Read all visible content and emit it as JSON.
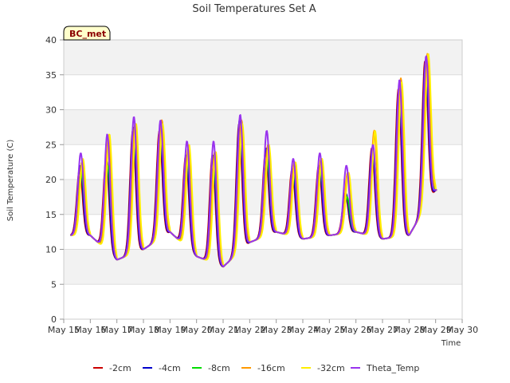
{
  "chart_data": {
    "type": "line",
    "title": "Soil Temperatures Set A",
    "xlabel": "Time",
    "ylabel": "Soil Temperature (C)",
    "site_label": "BC_met",
    "xlim": [
      "May 15",
      "May 30"
    ],
    "ylim": [
      0,
      40
    ],
    "x_ticks": [
      "May 15",
      "May 16",
      "May 17",
      "May 18",
      "May 19",
      "May 20",
      "May 21",
      "May 22",
      "May 23",
      "May 24",
      "May 25",
      "May 26",
      "May 27",
      "May 28",
      "May 29",
      "May 30"
    ],
    "y_ticks": [
      0,
      5,
      10,
      15,
      20,
      25,
      30,
      35,
      40
    ],
    "grid": true,
    "legend_position": "bottom",
    "daily_minimum": [
      [
        "May 15",
        12.0
      ],
      [
        "May 16",
        12.0
      ],
      [
        "May 17",
        8.5
      ],
      [
        "May 18",
        10.0
      ],
      [
        "May 19",
        12.5
      ],
      [
        "May 20",
        9.0
      ],
      [
        "May 21",
        7.5
      ],
      [
        "May 22",
        11.0
      ],
      [
        "May 23",
        12.5
      ],
      [
        "May 24",
        11.5
      ],
      [
        "May 25",
        12.0
      ],
      [
        "May 26",
        12.5
      ],
      [
        "May 27",
        11.5
      ],
      [
        "May 28",
        12.0
      ],
      [
        "May 29",
        18.5
      ]
    ],
    "series": [
      {
        "name": "-2cm",
        "color": "#cc0000",
        "daily_peak": [
          [
            "May 15",
            21.5
          ],
          [
            "May 16",
            23.0
          ],
          [
            "May 17",
            27.0
          ],
          [
            "May 18",
            27.0
          ],
          [
            "May 19",
            23.5
          ],
          [
            "May 20",
            23.5
          ],
          [
            "May 21",
            28.0
          ],
          [
            "May 22",
            24.0
          ],
          [
            "May 23",
            21.5
          ],
          [
            "May 24",
            22.0
          ],
          [
            "May 25",
            18.0
          ],
          [
            "May 26",
            24.5
          ],
          [
            "May 27",
            33.0
          ],
          [
            "May 28",
            37.0
          ]
        ]
      },
      {
        "name": "-4cm",
        "color": "#0000cc",
        "daily_peak": [
          [
            "May 15",
            22.0
          ],
          [
            "May 16",
            23.0
          ],
          [
            "May 17",
            27.5
          ],
          [
            "May 18",
            27.0
          ],
          [
            "May 19",
            23.5
          ],
          [
            "May 20",
            23.5
          ],
          [
            "May 21",
            28.5
          ],
          [
            "May 22",
            24.5
          ],
          [
            "May 23",
            21.5
          ],
          [
            "May 24",
            22.0
          ],
          [
            "May 25",
            18.0
          ],
          [
            "May 26",
            24.5
          ],
          [
            "May 27",
            33.0
          ],
          [
            "May 28",
            37.0
          ]
        ]
      },
      {
        "name": "-8cm",
        "color": "#00dd00",
        "daily_peak": [
          [
            "May 15",
            21.0
          ],
          [
            "May 16",
            22.0
          ],
          [
            "May 17",
            26.0
          ],
          [
            "May 18",
            26.5
          ],
          [
            "May 19",
            23.0
          ],
          [
            "May 20",
            22.0
          ],
          [
            "May 21",
            26.5
          ],
          [
            "May 22",
            23.0
          ],
          [
            "May 23",
            21.0
          ],
          [
            "May 24",
            21.5
          ],
          [
            "May 25",
            17.5
          ],
          [
            "May 26",
            23.5
          ],
          [
            "May 27",
            31.5
          ],
          [
            "May 28",
            36.0
          ]
        ]
      },
      {
        "name": "-16cm",
        "color": "#ff9900",
        "daily_peak": [
          [
            "May 15",
            22.5
          ],
          [
            "May 16",
            26.0
          ],
          [
            "May 17",
            28.0
          ],
          [
            "May 18",
            28.5
          ],
          [
            "May 19",
            24.5
          ],
          [
            "May 20",
            24.0
          ],
          [
            "May 21",
            28.5
          ],
          [
            "May 22",
            25.0
          ],
          [
            "May 23",
            22.5
          ],
          [
            "May 24",
            23.0
          ],
          [
            "May 25",
            21.0
          ],
          [
            "May 26",
            27.0
          ],
          [
            "May 27",
            34.5
          ],
          [
            "May 28",
            38.0
          ]
        ]
      },
      {
        "name": "-32cm",
        "color": "#ffee00",
        "daily_peak": [
          [
            "May 15",
            23.0
          ],
          [
            "May 16",
            26.5
          ],
          [
            "May 17",
            28.0
          ],
          [
            "May 18",
            28.0
          ],
          [
            "May 19",
            25.0
          ],
          [
            "May 20",
            24.0
          ],
          [
            "May 21",
            28.0
          ],
          [
            "May 22",
            25.0
          ],
          [
            "May 23",
            22.5
          ],
          [
            "May 24",
            23.0
          ],
          [
            "May 25",
            21.0
          ],
          [
            "May 26",
            27.0
          ],
          [
            "May 27",
            34.0
          ],
          [
            "May 28",
            38.0
          ]
        ]
      },
      {
        "name": "Theta_Temp",
        "color": "#9933ee",
        "daily_peak": [
          [
            "May 15",
            23.8
          ],
          [
            "May 16",
            26.5
          ],
          [
            "May 17",
            29.0
          ],
          [
            "May 18",
            28.5
          ],
          [
            "May 19",
            25.5
          ],
          [
            "May 20",
            25.5
          ],
          [
            "May 21",
            29.3
          ],
          [
            "May 22",
            27.0
          ],
          [
            "May 23",
            23.0
          ],
          [
            "May 24",
            23.8
          ],
          [
            "May 25",
            22.0
          ],
          [
            "May 26",
            25.0
          ],
          [
            "May 27",
            34.3
          ],
          [
            "May 28",
            37.7
          ]
        ]
      }
    ]
  }
}
